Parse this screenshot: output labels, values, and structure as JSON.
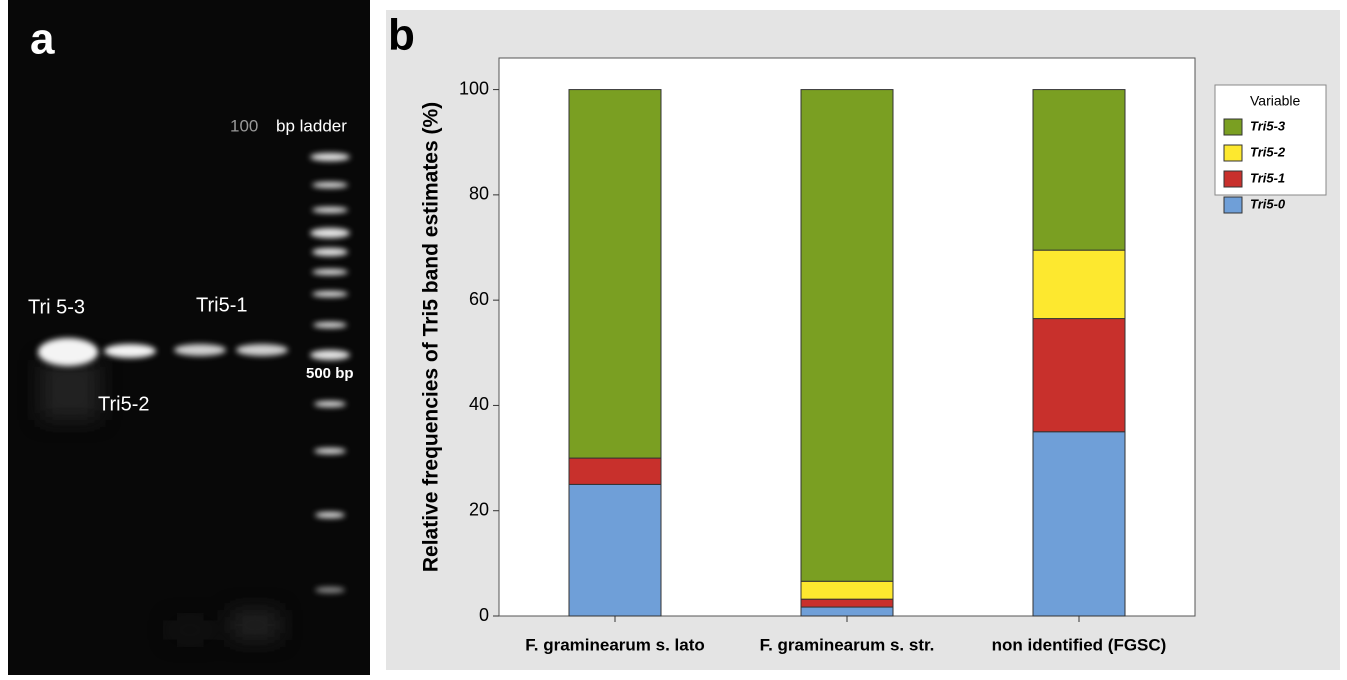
{
  "gel": {
    "panel_label": "a",
    "ladder_size": "100",
    "ladder_text": "bp ladder",
    "marker": "500 bp",
    "lanes": [
      "Tri 5-3",
      "Tri5-2",
      "Tri5-1"
    ]
  },
  "chart_data": {
    "type": "stacked_bar",
    "panel_label": "b",
    "y_label": "Relative frequencies of Tri5 band estimates  (%)",
    "categories": [
      "F. graminearum s. lato",
      "F. graminearum s. str.",
      "non identified (FGSC)"
    ],
    "series": [
      {
        "name": "Tri5-0",
        "color": "#6f9fd8",
        "values": [
          25,
          1.7,
          35
        ]
      },
      {
        "name": "Tri5-1",
        "color": "#c8302c",
        "values": [
          5,
          1.5,
          21.5
        ]
      },
      {
        "name": "Tri5-2",
        "color": "#fde82f",
        "values": [
          0,
          3.4,
          13
        ]
      },
      {
        "name": "Tri5-3",
        "color": "#7a9f22",
        "values": [
          70,
          93.4,
          30.5
        ]
      }
    ],
    "legend_title": "Variable",
    "legend": "right",
    "ylim": [
      0,
      106
    ],
    "yticks": [
      0,
      20,
      40,
      60,
      80,
      100
    ]
  }
}
